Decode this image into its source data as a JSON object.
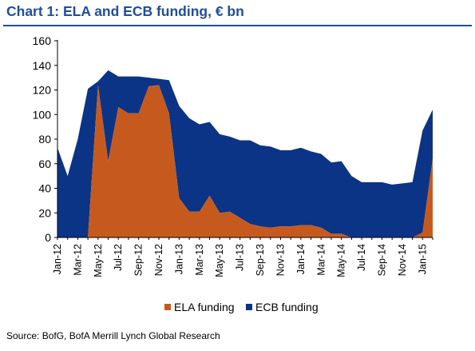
{
  "title": "Chart 1: ELA and ECB funding, € bn",
  "source": "Source: BofG, BofA Merrill Lynch Global Research",
  "colors": {
    "ela": "#c65a1e",
    "ecb": "#0b3486",
    "title": "#1f4e9a"
  },
  "chart_data": {
    "type": "area",
    "stacked": true,
    "title": "Chart 1: ELA and ECB funding, € bn",
    "xlabel": "",
    "ylabel": "",
    "ylim": [
      0,
      160
    ],
    "yticks": [
      0,
      20,
      40,
      60,
      80,
      100,
      120,
      140,
      160
    ],
    "grid": false,
    "legend": "bottom",
    "x_tick_labels": [
      "Jan-12",
      "Mar-12",
      "May-12",
      "Jul-12",
      "Sep-12",
      "Nov-12",
      "Jan-13",
      "Mar-13",
      "May-13",
      "Jul-13",
      "Sep-13",
      "Nov-13",
      "Jan-14",
      "Mar-14",
      "May-14",
      "Jul-14",
      "Sep-14",
      "Nov-14",
      "Jan-15"
    ],
    "x": [
      "Jan-12",
      "Feb-12",
      "Mar-12",
      "Apr-12",
      "May-12",
      "Jun-12",
      "Jul-12",
      "Aug-12",
      "Sep-12",
      "Oct-12",
      "Nov-12",
      "Dec-12",
      "Jan-13",
      "Feb-13",
      "Mar-13",
      "Apr-13",
      "May-13",
      "Jun-13",
      "Jul-13",
      "Aug-13",
      "Sep-13",
      "Oct-13",
      "Nov-13",
      "Dec-13",
      "Jan-14",
      "Feb-14",
      "Mar-14",
      "Apr-14",
      "May-14",
      "Jun-14",
      "Jul-14",
      "Aug-14",
      "Sep-14",
      "Oct-14",
      "Nov-14",
      "Dec-14",
      "Jan-15",
      "Feb-15"
    ],
    "series": [
      {
        "name": "ELA funding",
        "values": [
          0,
          0,
          0,
          0,
          124,
          62,
          106,
          101,
          101,
          123,
          124,
          101,
          32,
          21,
          21,
          34,
          20,
          21,
          16,
          11,
          9,
          8,
          9,
          9,
          10,
          10,
          8,
          3,
          3,
          0,
          0,
          0,
          0,
          0,
          0,
          0,
          4,
          64
        ]
      },
      {
        "name": "ECB funding",
        "values": [
          73,
          50,
          80,
          121,
          3,
          74,
          25,
          30,
          30,
          7,
          5,
          27,
          75,
          76,
          71,
          60,
          64,
          61,
          63,
          68,
          66,
          66,
          62,
          62,
          63,
          60,
          60,
          58,
          59,
          50,
          45,
          45,
          45,
          43,
          44,
          45,
          83,
          40
        ]
      }
    ]
  }
}
